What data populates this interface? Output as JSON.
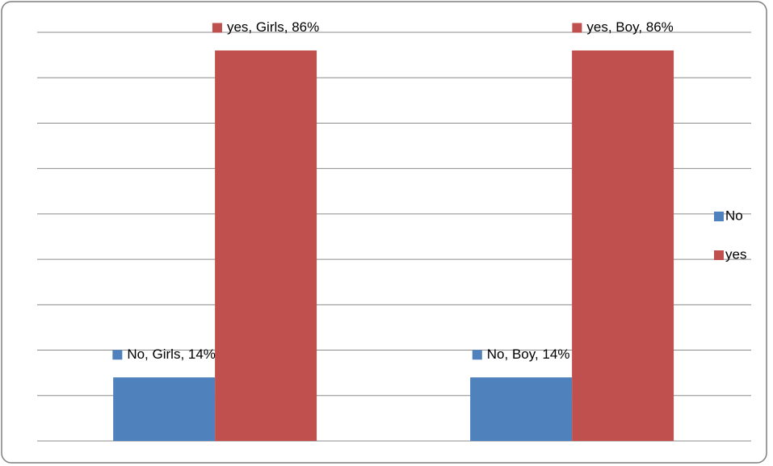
{
  "chart_data": {
    "type": "bar",
    "categories": [
      "Girls",
      "Boy"
    ],
    "series": [
      {
        "name": "No",
        "color": "#4f81bd",
        "values": [
          14,
          14
        ],
        "value_labels": [
          "No, Girls, 14%",
          "No, Boy, 14%"
        ]
      },
      {
        "name": "yes",
        "color": "#c0504d",
        "values": [
          86,
          86
        ],
        "value_labels": [
          "yes, Girls, 86%",
          "yes, Boy, 86%"
        ]
      }
    ],
    "ylim": [
      0,
      90
    ],
    "yticks": [
      0,
      10,
      20,
      30,
      40,
      50,
      60,
      70,
      80,
      90
    ],
    "grid": true,
    "legend": "right"
  }
}
